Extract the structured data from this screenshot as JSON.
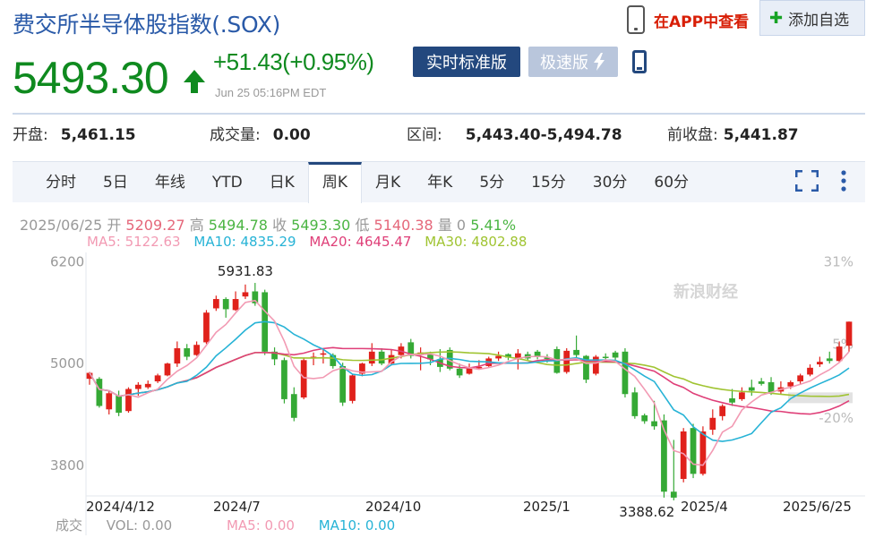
{
  "header": {
    "title": "费交所半导体股指数(.SOX)",
    "app_link": "在APP中查看",
    "add_watchlist": "添加自选",
    "price": "5493.30",
    "change": "+51.43(+0.95%)",
    "timestamp": "Jun 25 05:16PM EDT",
    "realtime_btn": "实时标准版",
    "fast_btn": "极速版"
  },
  "stats": [
    {
      "label": "开盘:",
      "value": "5,461.15"
    },
    {
      "label": "成交量:",
      "value": "0.00"
    },
    {
      "label": "区间:",
      "value": "5,443.40-5,494.78"
    },
    {
      "label": "前收盘:",
      "value": "5,441.87"
    }
  ],
  "tabs": [
    "分时",
    "5日",
    "年线",
    "YTD",
    "日K",
    "周K",
    "月K",
    "年K",
    "5分",
    "15分",
    "30分",
    "60分"
  ],
  "active_tab": "周K",
  "ohlc": {
    "date": "2025/06/25",
    "open_label": "开",
    "open": "5209.27",
    "high_label": "高",
    "high": "5494.78",
    "close_label": "收",
    "close": "5493.30",
    "low_label": "低",
    "low": "5140.38",
    "vol_label": "量",
    "vol": "0",
    "pct": "5.41%"
  },
  "ma": {
    "ma5": "MA5: 5122.63",
    "ma10": "MA10: 4835.29",
    "ma20": "MA20: 4645.47",
    "ma30": "MA30: 4802.88"
  },
  "volume_row": {
    "label": "成交",
    "vol": "VOL: 0.00",
    "ma5": "MA5: 0.00",
    "ma10": "MA10: 0.00"
  },
  "colors": {
    "up": "#e0211b",
    "down": "#35a935",
    "ma5": "#f29ab3",
    "ma10": "#27b3d6",
    "ma20": "#df3f78",
    "ma30": "#a0c432"
  },
  "chart_data": {
    "type": "candlestick",
    "title": "",
    "y_ticks_left": [
      "6200",
      "5000",
      "3800"
    ],
    "y_ticks_right": [
      "31%",
      "5%",
      "-20%"
    ],
    "x_ticks": [
      "2024/4/12",
      "2024/7",
      "2024/10",
      "2025/1",
      "2025/4",
      "2025/6/25"
    ],
    "annotations": {
      "high": "5931.83",
      "low": "3388.62"
    },
    "ylim": [
      3440,
      6330
    ],
    "watermark": "新浪财经",
    "candles": [
      [
        4820,
        4890,
        4750,
        4900
      ],
      [
        4820,
        4500,
        4480,
        4840
      ],
      [
        4460,
        4650,
        4400,
        4680
      ],
      [
        4620,
        4420,
        4380,
        4680
      ],
      [
        4440,
        4700,
        4420,
        4720
      ],
      [
        4700,
        4750,
        4620,
        4780
      ],
      [
        4720,
        4760,
        4700,
        4800
      ],
      [
        4790,
        4860,
        4770,
        4880
      ],
      [
        4860,
        5000,
        4850,
        5010
      ],
      [
        5000,
        5180,
        4960,
        5260
      ],
      [
        5180,
        5080,
        5040,
        5230
      ],
      [
        5100,
        5220,
        5090,
        5260
      ],
      [
        5250,
        5600,
        5230,
        5630
      ],
      [
        5650,
        5760,
        5620,
        5800
      ],
      [
        5760,
        5640,
        5540,
        5780
      ],
      [
        5630,
        5760,
        5620,
        5850
      ],
      [
        5790,
        5840,
        5760,
        5931
      ],
      [
        5850,
        5710,
        5680,
        5950
      ],
      [
        5840,
        5140,
        5100,
        5870
      ],
      [
        5140,
        5050,
        4980,
        5190
      ],
      [
        5040,
        4580,
        4530,
        5070
      ],
      [
        4640,
        4360,
        4320,
        4720
      ],
      [
        4600,
        5040,
        4580,
        5070
      ],
      [
        5060,
        5080,
        4980,
        5130
      ],
      [
        5110,
        5120,
        5000,
        5180
      ],
      [
        5100,
        4970,
        4940,
        5120
      ],
      [
        4970,
        4540,
        4500,
        5010
      ],
      [
        4560,
        4860,
        4530,
        4880
      ],
      [
        4880,
        5000,
        4850,
        5010
      ],
      [
        5000,
        5140,
        4970,
        5240
      ],
      [
        5140,
        5000,
        4980,
        5180
      ],
      [
        5000,
        5100,
        4990,
        5160
      ],
      [
        5100,
        5200,
        5060,
        5240
      ],
      [
        5250,
        5090,
        5060,
        5290
      ],
      [
        5100,
        5130,
        4920,
        5190
      ],
      [
        5110,
        5050,
        4980,
        5140
      ],
      [
        5050,
        4960,
        4900,
        5170
      ],
      [
        5160,
        4940,
        4920,
        5190
      ],
      [
        4940,
        4860,
        4830,
        5000
      ],
      [
        4880,
        4940,
        4870,
        5000
      ],
      [
        4960,
        4960,
        4930,
        5040
      ],
      [
        4970,
        5060,
        4960,
        5080
      ],
      [
        5060,
        5090,
        5030,
        5140
      ],
      [
        5110,
        5070,
        5040,
        5120
      ],
      [
        5050,
        5120,
        4930,
        5170
      ],
      [
        5110,
        5060,
        5040,
        5140
      ],
      [
        5140,
        5080,
        5050,
        5160
      ],
      [
        5070,
        5060,
        5010,
        5110
      ],
      [
        5170,
        4890,
        4880,
        5200
      ],
      [
        4900,
        5150,
        4880,
        5180
      ],
      [
        5160,
        5100,
        5060,
        5330
      ],
      [
        5090,
        4810,
        4770,
        5100
      ],
      [
        4880,
        5080,
        4860,
        5100
      ],
      [
        5080,
        5070,
        5040,
        5120
      ],
      [
        5130,
        5070,
        5030,
        5150
      ],
      [
        5140,
        4640,
        4600,
        5180
      ],
      [
        4660,
        4380,
        4350,
        4720
      ],
      [
        4390,
        4320,
        4290,
        4410
      ],
      [
        4320,
        4260,
        4220,
        4560
      ],
      [
        4330,
        3490,
        3420,
        4400
      ],
      [
        3490,
        3420,
        3388,
        4100
      ],
      [
        3640,
        4200,
        3600,
        4240
      ],
      [
        4240,
        3700,
        3650,
        4290
      ],
      [
        3700,
        4200,
        3680,
        4260
      ],
      [
        4220,
        4360,
        4160,
        4460
      ],
      [
        4380,
        4500,
        4330,
        4520
      ],
      [
        4590,
        4540,
        4500,
        4700
      ],
      [
        4580,
        4660,
        4560,
        4720
      ],
      [
        4720,
        4680,
        4620,
        4810
      ],
      [
        4790,
        4760,
        4740,
        4830
      ],
      [
        4780,
        4660,
        4630,
        4840
      ],
      [
        4670,
        4720,
        4640,
        4790
      ],
      [
        4730,
        4780,
        4700,
        4800
      ],
      [
        4790,
        4860,
        4760,
        4880
      ],
      [
        4870,
        4950,
        4850,
        4990
      ],
      [
        4990,
        5020,
        4960,
        5080
      ],
      [
        5060,
        5030,
        5000,
        5140
      ],
      [
        5030,
        5200,
        5010,
        5260
      ],
      [
        5209.27,
        5493.3,
        5140.38,
        5494.78
      ]
    ]
  }
}
